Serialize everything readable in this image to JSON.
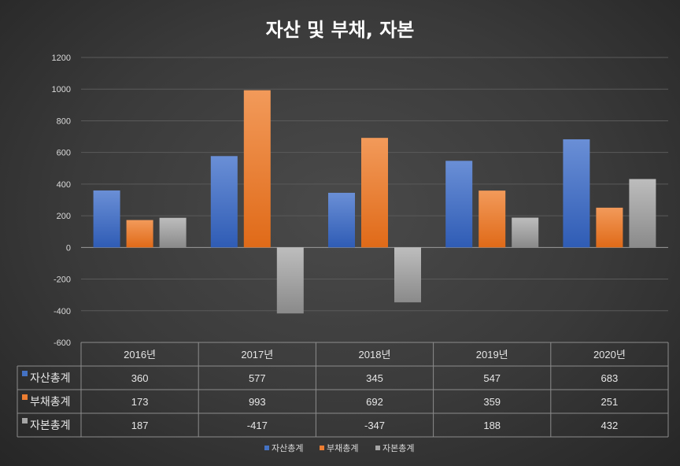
{
  "title": "자산 및 부채, 자본",
  "chart_data": {
    "type": "bar",
    "title": "자산 및 부채, 자본",
    "categories": [
      "2016년",
      "2017년",
      "2018년",
      "2019년",
      "2020년"
    ],
    "series": [
      {
        "name": "자산총계",
        "color": "#4472C4",
        "values": [
          360,
          577,
          345,
          547,
          683
        ]
      },
      {
        "name": "부채총계",
        "color": "#ED7D31",
        "values": [
          173,
          993,
          692,
          359,
          251
        ]
      },
      {
        "name": "자본총계",
        "color": "#A5A5A5",
        "values": [
          187,
          -417,
          -347,
          188,
          432
        ]
      }
    ],
    "ylim": [
      -600,
      1200
    ],
    "yticks": [
      1200,
      1000,
      800,
      600,
      400,
      200,
      0,
      -200,
      -400,
      -600
    ],
    "grid": true,
    "data_table": true,
    "legend_position": "bottom"
  }
}
